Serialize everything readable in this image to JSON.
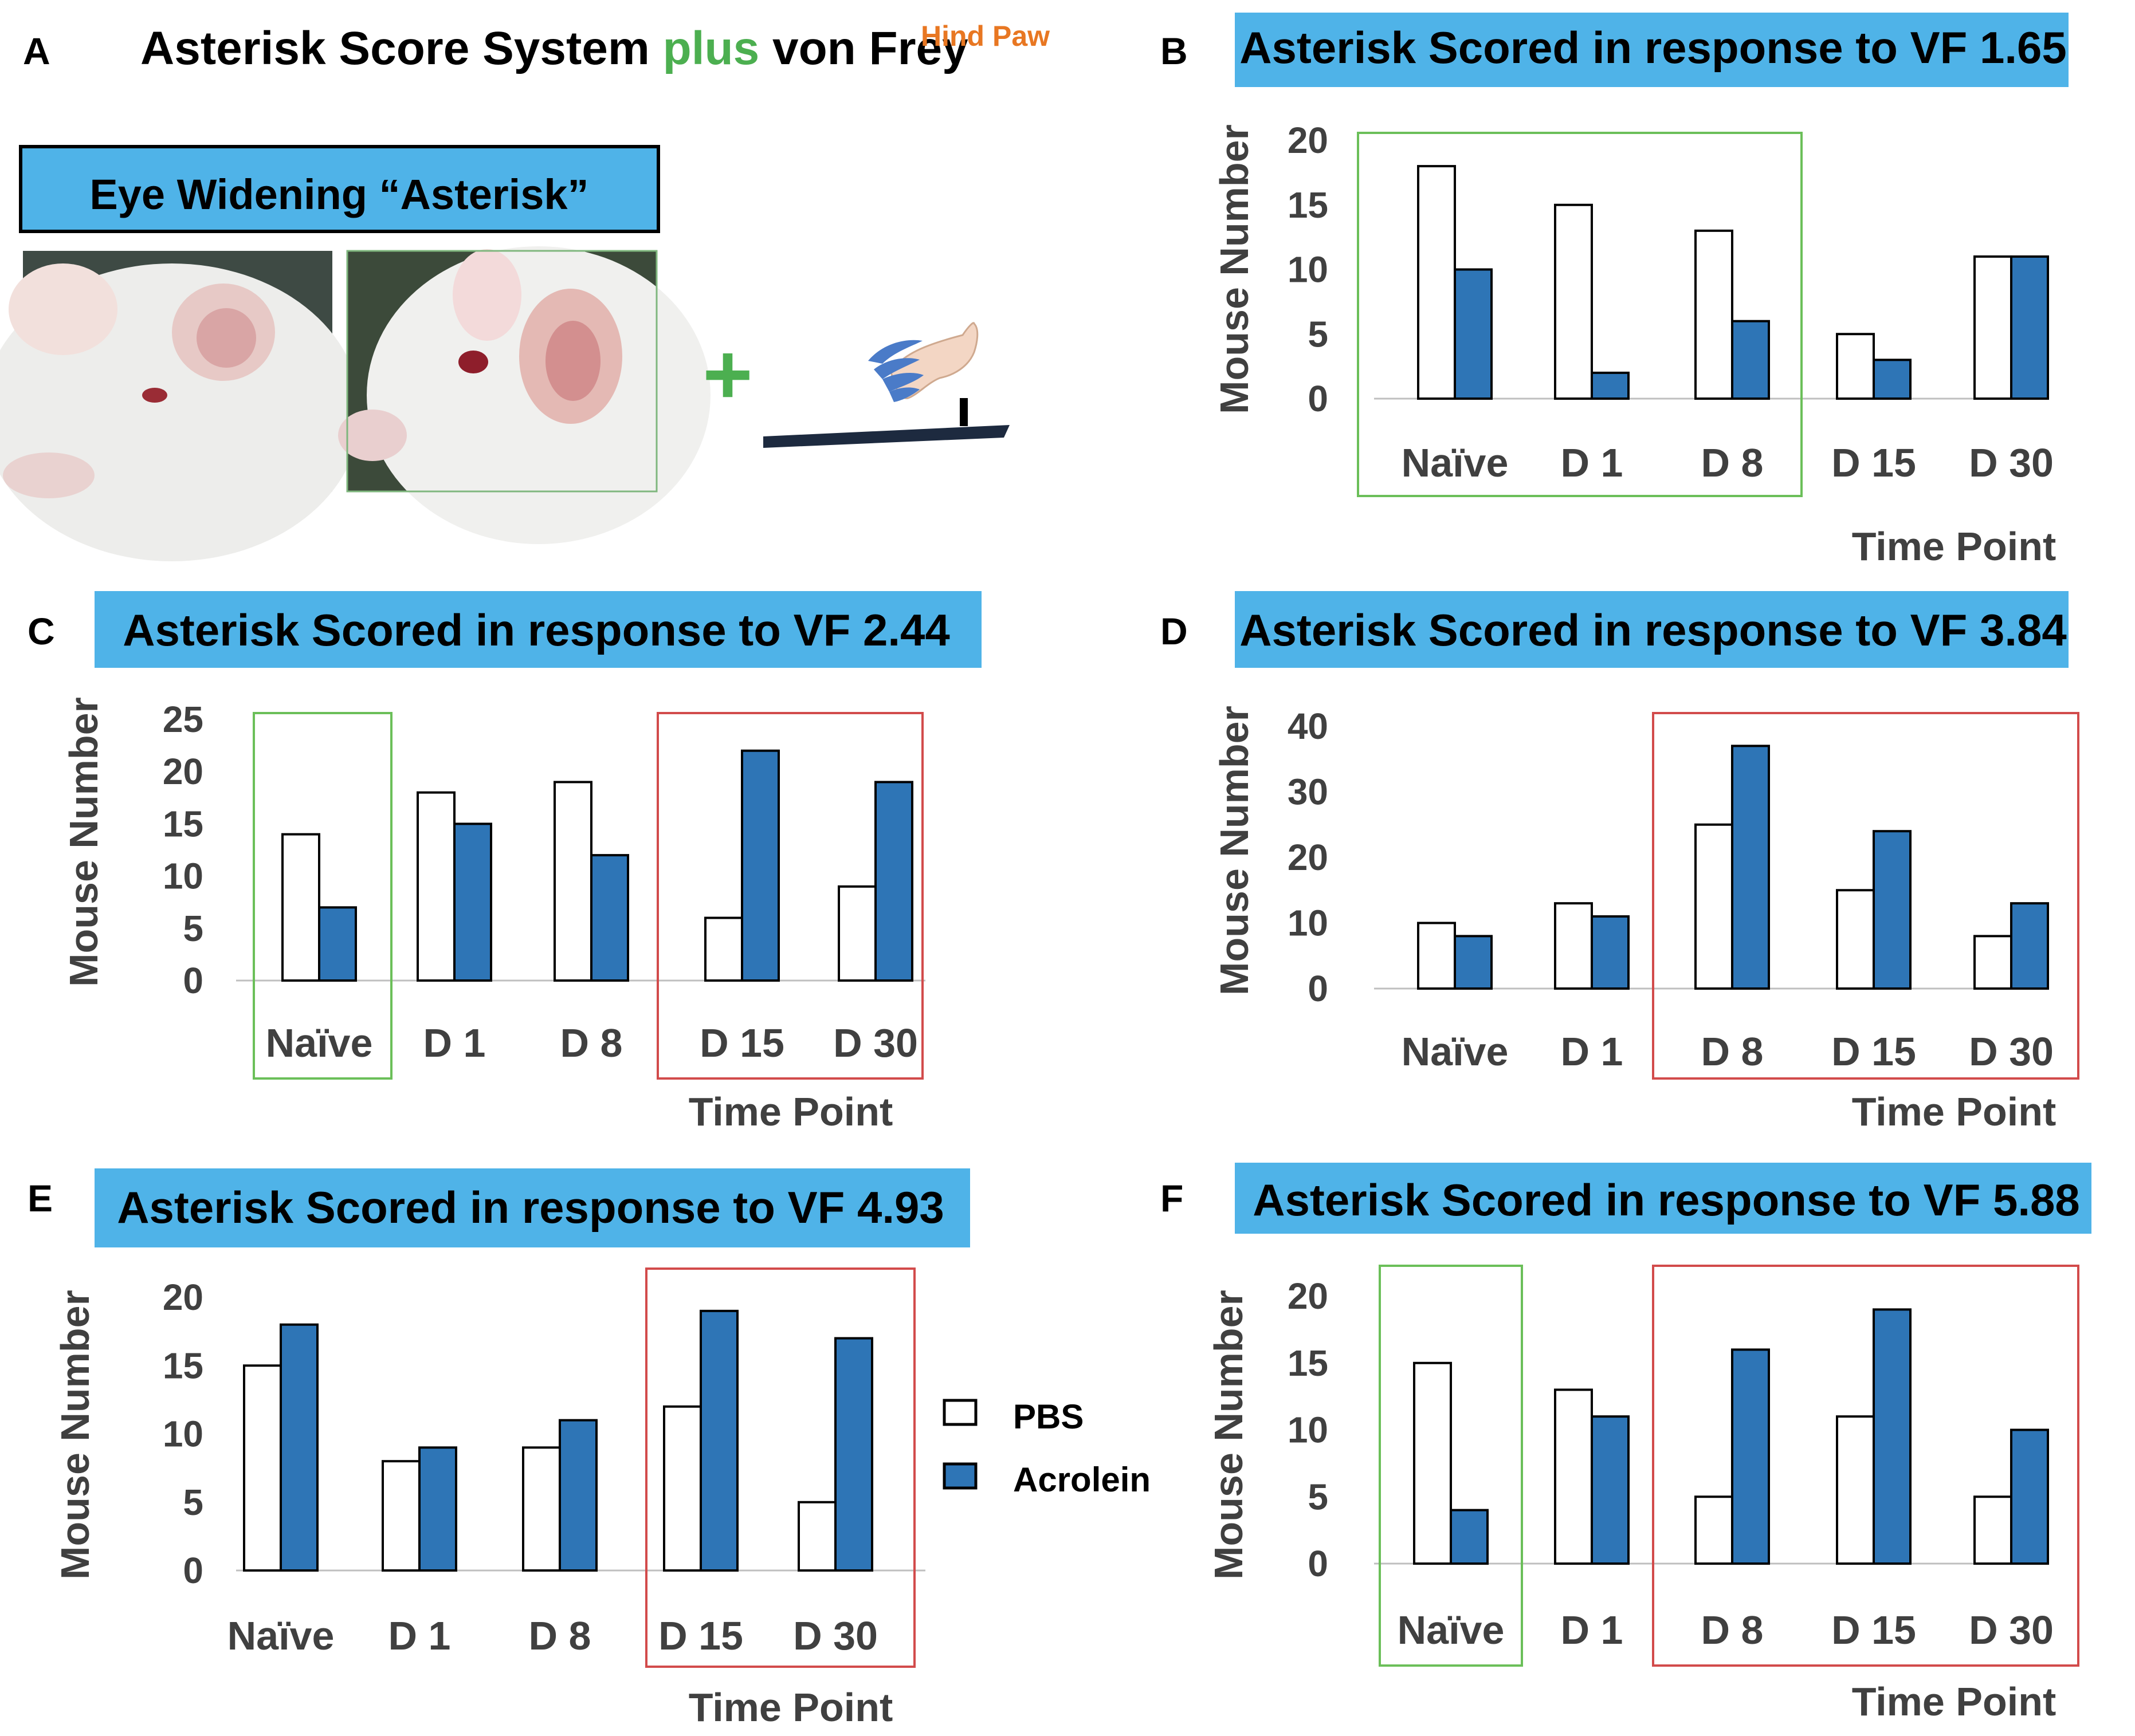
{
  "figure": {
    "panel_a": {
      "letter": "A",
      "title_prefix": "Asterisk Score System ",
      "title_plus": "plus",
      "title_suffix": " von Frey",
      "title_superscript": "Hind Paw",
      "eye_label": "Eye Widening “Asterisk”",
      "plus_sign": "+"
    },
    "legend": {
      "pbs": "PBS",
      "acrolein": "Acrolein"
    },
    "colors": {
      "header_bg": "#4FB3E8",
      "acrolein": "#2E75B6",
      "pbs": "#FFFFFF",
      "green_box": "#6BBF59",
      "red_box": "#D24B4B",
      "green_text": "#4CAF50",
      "orange_text": "#E87722"
    }
  },
  "chart_data": [
    {
      "panel": "B",
      "type": "bar",
      "title": "Asterisk Scored in response to VF 1.65",
      "ylabel": "Mouse Number",
      "xlabel": "Time Point",
      "ylim": [
        0,
        20
      ],
      "yticks": [
        0,
        5,
        10,
        15,
        20
      ],
      "categories": [
        "Naïve",
        "D 1",
        "D 8",
        "D 15",
        "D 30"
      ],
      "series": [
        {
          "name": "PBS",
          "values": [
            18,
            15,
            13,
            5,
            11
          ]
        },
        {
          "name": "Acrolein",
          "values": [
            10,
            2,
            6,
            3,
            11
          ]
        }
      ],
      "highlights": [
        {
          "color": "green",
          "from": 0,
          "to": 2
        }
      ]
    },
    {
      "panel": "C",
      "type": "bar",
      "title": "Asterisk Scored in response to VF 2.44",
      "ylabel": "Mouse Number",
      "xlabel": "Time Point",
      "ylim": [
        0,
        25
      ],
      "yticks": [
        0,
        5,
        10,
        15,
        20,
        25
      ],
      "categories": [
        "Naïve",
        "D 1",
        "D 8",
        "D 15",
        "D 30"
      ],
      "series": [
        {
          "name": "PBS",
          "values": [
            14,
            18,
            19,
            6,
            9
          ]
        },
        {
          "name": "Acrolein",
          "values": [
            7,
            15,
            12,
            22,
            19
          ]
        }
      ],
      "highlights": [
        {
          "color": "green",
          "from": 0,
          "to": 0
        },
        {
          "color": "red",
          "from": 3,
          "to": 4
        }
      ]
    },
    {
      "panel": "D",
      "type": "bar",
      "title": "Asterisk Scored in response to VF 3.84",
      "ylabel": "Mouse Number",
      "xlabel": "Time Point",
      "ylim": [
        0,
        40
      ],
      "yticks": [
        0,
        10,
        20,
        30,
        40
      ],
      "categories": [
        "Naïve",
        "D 1",
        "D 8",
        "D 15",
        "D 30"
      ],
      "series": [
        {
          "name": "PBS",
          "values": [
            10,
            13,
            25,
            15,
            8
          ]
        },
        {
          "name": "Acrolein",
          "values": [
            8,
            11,
            37,
            24,
            13
          ]
        }
      ],
      "highlights": [
        {
          "color": "red",
          "from": 2,
          "to": 4
        }
      ]
    },
    {
      "panel": "E",
      "type": "bar",
      "title": "Asterisk Scored in response to VF 4.93",
      "ylabel": "Mouse Number",
      "xlabel": "Time Point",
      "ylim": [
        0,
        20
      ],
      "yticks": [
        0,
        5,
        10,
        15,
        20
      ],
      "categories": [
        "Naïve",
        "D 1",
        "D 8",
        "D 15",
        "D 30"
      ],
      "series": [
        {
          "name": "PBS",
          "values": [
            15,
            8,
            9,
            12,
            5
          ]
        },
        {
          "name": "Acrolein",
          "values": [
            18,
            9,
            11,
            19,
            17
          ]
        }
      ],
      "highlights": [
        {
          "color": "red",
          "from": 3,
          "to": 4
        }
      ]
    },
    {
      "panel": "F",
      "type": "bar",
      "title": "Asterisk Scored in response to VF 5.88",
      "ylabel": "Mouse Number",
      "xlabel": "Time Point",
      "ylim": [
        0,
        20
      ],
      "yticks": [
        0,
        5,
        10,
        15,
        20
      ],
      "categories": [
        "Naïve",
        "D 1",
        "D 8",
        "D 15",
        "D 30"
      ],
      "series": [
        {
          "name": "PBS",
          "values": [
            15,
            13,
            5,
            11,
            5
          ]
        },
        {
          "name": "Acrolein",
          "values": [
            4,
            11,
            16,
            19,
            10
          ]
        }
      ],
      "highlights": [
        {
          "color": "green",
          "from": 0,
          "to": 0
        },
        {
          "color": "red",
          "from": 2,
          "to": 4
        }
      ]
    }
  ]
}
